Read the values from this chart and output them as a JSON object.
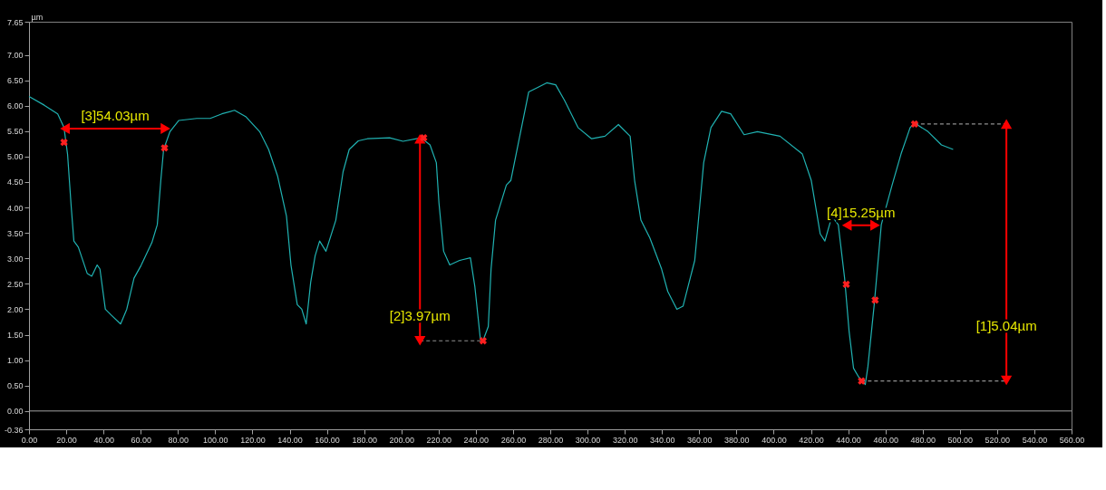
{
  "chart_data": {
    "type": "line",
    "ylabel": "µm",
    "xlim": [
      0,
      560
    ],
    "ylim": [
      -0.36,
      7.65
    ],
    "xticks": [
      {
        "value": 0,
        "label": "0.00"
      },
      {
        "value": 20,
        "label": "20.00"
      },
      {
        "value": 40,
        "label": "40.00"
      },
      {
        "value": 60,
        "label": "60.00"
      },
      {
        "value": 80,
        "label": "80.00"
      },
      {
        "value": 100,
        "label": "100.00"
      },
      {
        "value": 120,
        "label": "120.00"
      },
      {
        "value": 140,
        "label": "140.00"
      },
      {
        "value": 160,
        "label": "160.00"
      },
      {
        "value": 180,
        "label": "180.00"
      },
      {
        "value": 200,
        "label": "200.00"
      },
      {
        "value": 220,
        "label": "220.00"
      },
      {
        "value": 240,
        "label": "240.00"
      },
      {
        "value": 260,
        "label": "260.00"
      },
      {
        "value": 280,
        "label": "280.00"
      },
      {
        "value": 300,
        "label": "300.00"
      },
      {
        "value": 320,
        "label": "320.00"
      },
      {
        "value": 340,
        "label": "340.00"
      },
      {
        "value": 360,
        "label": "360.00"
      },
      {
        "value": 380,
        "label": "380.00"
      },
      {
        "value": 400,
        "label": "400.00"
      },
      {
        "value": 420,
        "label": "420.00"
      },
      {
        "value": 440,
        "label": "440.00"
      },
      {
        "value": 460,
        "label": "460.00"
      },
      {
        "value": 480,
        "label": "480.00"
      },
      {
        "value": 500,
        "label": "500.00"
      },
      {
        "value": 520,
        "label": "520.00"
      },
      {
        "value": 540,
        "label": "540.00"
      },
      {
        "value": 560,
        "label": "560.00"
      }
    ],
    "yticks": [
      {
        "value": -0.36,
        "label": "-0.36"
      },
      {
        "value": 0,
        "label": "0.00"
      },
      {
        "value": 0.5,
        "label": "0.50"
      },
      {
        "value": 1,
        "label": "1.00"
      },
      {
        "value": 1.5,
        "label": "1.50"
      },
      {
        "value": 2,
        "label": "2.00"
      },
      {
        "value": 2.5,
        "label": "2.50"
      },
      {
        "value": 3,
        "label": "3.00"
      },
      {
        "value": 3.5,
        "label": "3.50"
      },
      {
        "value": 4,
        "label": "4.00"
      },
      {
        "value": 4.5,
        "label": "4.50"
      },
      {
        "value": 5,
        "label": "5.00"
      },
      {
        "value": 5.5,
        "label": "5.50"
      },
      {
        "value": 6,
        "label": "6.00"
      },
      {
        "value": 6.5,
        "label": "6.50"
      },
      {
        "value": 7,
        "label": "7.00"
      },
      {
        "value": 7.65,
        "label": "7.65"
      }
    ],
    "grid": false,
    "ref_lines": [
      {
        "axis": "y",
        "value": 0,
        "color": "#a0a0a0"
      }
    ],
    "series": [
      {
        "color": "#20b2b2",
        "x": [
          0,
          8.2,
          15.4,
          18.8,
          20.7,
          22.7,
          24.1,
          26.5,
          31.3,
          33.7,
          36.6,
          38.1,
          41,
          44.3,
          49.2,
          52.5,
          56.4,
          60.2,
          66,
          68.9,
          70.8,
          72.3,
          75.7,
          80.5,
          90.1,
          97.3,
          103.6,
          110.4,
          116.6,
          123.9,
          128.7,
          133.5,
          138.3,
          140.7,
          144.1,
          146.5,
          148.9,
          151.3,
          153.7,
          156.1,
          159.5,
          164.8,
          168.7,
          172,
          176.9,
          181.7,
          193.7,
          200.9,
          210.6,
          215.4,
          218.8,
          220.2,
          222.7,
          226,
          231.3,
          237.1,
          239.5,
          242.4,
          243.9,
          246.7,
          248.2,
          250.6,
          256.4,
          258.8,
          263.6,
          268.4,
          273.3,
          278.1,
          282.9,
          287.7,
          294.9,
          302.2,
          309.4,
          316.6,
          322.9,
          325.3,
          328.7,
          333.5,
          339.8,
          343.1,
          348,
          351.3,
          357.6,
          362.4,
          366.3,
          372,
          376.9,
          384.1,
          391.3,
          403.4,
          415.4,
          420.2,
          425,
          427.5,
          431.3,
          434.7,
          438.1,
          440.5,
          442.9,
          445.8,
          449.2,
          450.6,
          454,
          457.8,
          463.6,
          468.4,
          473.3,
          475.7,
          482.9,
          490.1,
          496.4
        ],
        "values": [
          6.18,
          6.01,
          5.84,
          5.57,
          5.05,
          4.0,
          3.34,
          3.22,
          2.7,
          2.65,
          2.87,
          2.79,
          2.0,
          1.88,
          1.71,
          2.0,
          2.61,
          2.86,
          3.31,
          3.66,
          4.53,
          5.14,
          5.49,
          5.71,
          5.75,
          5.75,
          5.84,
          5.91,
          5.78,
          5.49,
          5.14,
          4.62,
          3.83,
          2.87,
          2.09,
          2.0,
          1.71,
          2.53,
          3.05,
          3.34,
          3.14,
          3.75,
          4.7,
          5.14,
          5.31,
          5.35,
          5.37,
          5.3,
          5.37,
          5.23,
          4.88,
          4.09,
          3.14,
          2.87,
          2.96,
          3.01,
          2.44,
          1.43,
          1.39,
          1.66,
          2.79,
          3.75,
          4.44,
          4.53,
          5.4,
          6.27,
          6.36,
          6.45,
          6.41,
          6.1,
          5.57,
          5.35,
          5.4,
          5.63,
          5.4,
          4.53,
          3.75,
          3.4,
          2.79,
          2.35,
          2.0,
          2.06,
          2.96,
          4.88,
          5.57,
          5.89,
          5.84,
          5.43,
          5.49,
          5.4,
          5.05,
          4.53,
          3.48,
          3.34,
          3.83,
          3.66,
          2.61,
          1.57,
          0.84,
          0.66,
          0.52,
          0.87,
          2.09,
          3.66,
          4.44,
          5.05,
          5.57,
          5.66,
          5.49,
          5.23,
          5.14
        ]
      },
      {
        "type": "line",
        "color": "#909090",
        "line_style": "dashed",
        "x": [
          210,
          243.9
        ],
        "values": [
          1.38,
          1.38
        ]
      },
      {
        "type": "line",
        "color": "#909090",
        "line_style": "dashed",
        "x": [
          475.7,
          525
        ],
        "values": [
          5.64,
          5.64
        ]
      },
      {
        "type": "line",
        "color": "#909090",
        "line_style": "dashed",
        "x": [
          447.2,
          525
        ],
        "values": [
          0.59,
          0.59
        ]
      },
      {
        "type": "line",
        "color": "#ff0000",
        "marker": "triangle",
        "x": [
          19.3,
          73.3
        ],
        "values": [
          5.55,
          5.55
        ]
      },
      {
        "type": "line",
        "color": "#ff0000",
        "marker": "triangle",
        "x": [
          210,
          210
        ],
        "values": [
          1.38,
          5.35
        ]
      },
      {
        "type": "line",
        "color": "#ff0000",
        "marker": "triangle",
        "x": [
          439.3,
          454.5
        ],
        "values": [
          3.65,
          3.65
        ]
      },
      {
        "type": "line",
        "color": "#ff0000",
        "marker": "triangle",
        "x": [
          525,
          525
        ],
        "values": [
          0.6,
          5.64
        ]
      },
      {
        "type": "scatter",
        "color": "#ff2020",
        "marker": "cross",
        "x": [
          18.8,
          72.8,
          212,
          243.9,
          439,
          454.5,
          447.2,
          475.7
        ],
        "values": [
          5.28,
          5.17,
          5.37,
          1.38,
          2.49,
          2.18,
          0.59,
          5.64
        ]
      }
    ],
    "annotations": [
      {
        "text": "[3]54.03µm",
        "x": 46.3,
        "y": 5.55
      },
      {
        "text": "[2]3.97µm",
        "x": 210,
        "y": 1.62
      },
      {
        "text": "[4]15.25µm",
        "x": 446.9,
        "y": 3.65
      },
      {
        "text": "[1]5.04µm",
        "x": 525,
        "y": 1.42
      }
    ]
  }
}
